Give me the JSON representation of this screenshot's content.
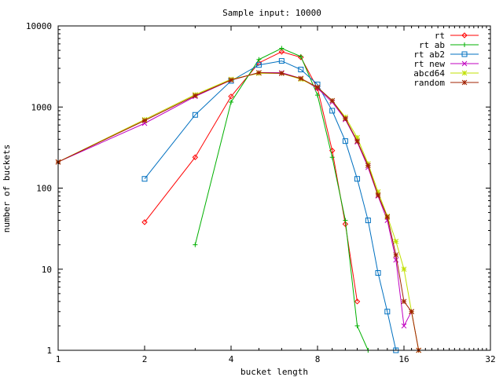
{
  "chart_data": {
    "type": "line",
    "title": "Sample input: 10000",
    "xlabel": "bucket length",
    "ylabel": "number of buckets",
    "x_scale": "log2",
    "y_scale": "log10",
    "xlim": [
      1,
      32
    ],
    "ylim": [
      1,
      10000
    ],
    "x_ticks": [
      1,
      2,
      4,
      8,
      16,
      32
    ],
    "y_ticks": [
      1,
      10,
      100,
      1000,
      10000
    ],
    "x_tick_labels": [
      "1",
      "2",
      "4",
      "8",
      "16",
      "32"
    ],
    "y_tick_labels": [
      "1",
      "10",
      "100",
      "1000",
      "10000"
    ],
    "grid": false,
    "legend_position": "top-right",
    "series": [
      {
        "name": "rt",
        "color": "#ff0000",
        "marker": "diamond",
        "points": [
          [
            2,
            38
          ],
          [
            3,
            240
          ],
          [
            4,
            1350
          ],
          [
            5,
            3500
          ],
          [
            6,
            4800
          ],
          [
            7,
            4100
          ],
          [
            8,
            1700
          ],
          [
            9,
            290
          ],
          [
            10,
            36
          ],
          [
            11,
            4
          ]
        ]
      },
      {
        "name": "rt ab",
        "color": "#00b000",
        "marker": "plus",
        "points": [
          [
            3,
            20
          ],
          [
            4,
            1150
          ],
          [
            5,
            3850
          ],
          [
            6,
            5300
          ],
          [
            7,
            4200
          ],
          [
            8,
            1400
          ],
          [
            9,
            240
          ],
          [
            10,
            40
          ],
          [
            11,
            2
          ],
          [
            12,
            1
          ]
        ]
      },
      {
        "name": "rt ab2",
        "color": "#0070c0",
        "marker": "square",
        "points": [
          [
            2,
            130
          ],
          [
            3,
            800
          ],
          [
            4,
            2100
          ],
          [
            5,
            3300
          ],
          [
            6,
            3700
          ],
          [
            7,
            2900
          ],
          [
            8,
            1900
          ],
          [
            9,
            900
          ],
          [
            10,
            380
          ],
          [
            11,
            130
          ],
          [
            12,
            40
          ],
          [
            13,
            9
          ],
          [
            14,
            3
          ],
          [
            15,
            1
          ]
        ]
      },
      {
        "name": "rt new",
        "color": "#c000c0",
        "marker": "x",
        "points": [
          [
            1,
            210
          ],
          [
            2,
            630
          ],
          [
            3,
            1350
          ],
          [
            4,
            2150
          ],
          [
            5,
            2650
          ],
          [
            6,
            2650
          ],
          [
            7,
            2250
          ],
          [
            8,
            1700
          ],
          [
            9,
            1150
          ],
          [
            10,
            700
          ],
          [
            11,
            370
          ],
          [
            12,
            180
          ],
          [
            13,
            80
          ],
          [
            14,
            40
          ],
          [
            15,
            13
          ],
          [
            16,
            2
          ],
          [
            17,
            3
          ]
        ]
      },
      {
        "name": "abcd64",
        "color": "#c0e000",
        "marker": "star",
        "points": [
          [
            1,
            210
          ],
          [
            2,
            700
          ],
          [
            3,
            1420
          ],
          [
            4,
            2200
          ],
          [
            5,
            2600
          ],
          [
            6,
            2600
          ],
          [
            7,
            2200
          ],
          [
            8,
            1750
          ],
          [
            9,
            1200
          ],
          [
            10,
            750
          ],
          [
            11,
            420
          ],
          [
            12,
            200
          ],
          [
            13,
            90
          ],
          [
            14,
            45
          ],
          [
            15,
            22
          ],
          [
            16,
            10
          ],
          [
            17,
            3
          ],
          [
            18,
            1
          ]
        ]
      },
      {
        "name": "random",
        "color": "#a02000",
        "marker": "star",
        "points": [
          [
            1,
            210
          ],
          [
            2,
            680
          ],
          [
            3,
            1380
          ],
          [
            4,
            2150
          ],
          [
            5,
            2650
          ],
          [
            6,
            2600
          ],
          [
            7,
            2250
          ],
          [
            8,
            1750
          ],
          [
            9,
            1200
          ],
          [
            10,
            720
          ],
          [
            11,
            380
          ],
          [
            12,
            190
          ],
          [
            13,
            82
          ],
          [
            14,
            44
          ],
          [
            15,
            15
          ],
          [
            16,
            4
          ],
          [
            17,
            3
          ],
          [
            18,
            1
          ]
        ]
      }
    ]
  }
}
